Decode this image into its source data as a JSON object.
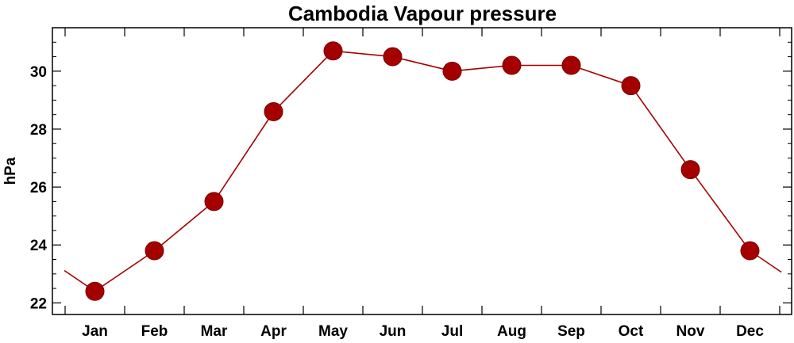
{
  "chart_data": {
    "type": "line",
    "title": "Cambodia Vapour pressure",
    "xlabel": "",
    "ylabel": "hPa",
    "categories": [
      "Jan",
      "Feb",
      "Mar",
      "Apr",
      "May",
      "Jun",
      "Jul",
      "Aug",
      "Sep",
      "Oct",
      "Nov",
      "Dec"
    ],
    "series": [
      {
        "values": [
          22.4,
          23.8,
          25.5,
          28.6,
          30.7,
          30.5,
          30.0,
          30.2,
          30.2,
          29.5,
          26.6,
          23.8
        ],
        "color": "#a50000"
      }
    ],
    "ylim": [
      21.6,
      31.5
    ],
    "yticks": [
      22,
      24,
      26,
      28,
      30
    ],
    "grid": false,
    "legend": "none"
  }
}
